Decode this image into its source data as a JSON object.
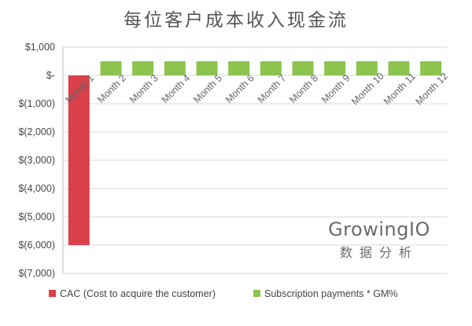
{
  "colors": {
    "cac": "#d9404a",
    "subscription": "#8cc44f",
    "grid": "#d9d9d9",
    "axis": "#bfbfbf"
  },
  "watermark": {
    "brand": "GrowingIO",
    "sub": "数据分析"
  },
  "chart_data": {
    "type": "bar",
    "title": "每位客户成本收入现金流",
    "xlabel": "",
    "ylabel": "",
    "categories": [
      "Month 1",
      "Month 2",
      "Month 3",
      "Month 4",
      "Month 5",
      "Month 6",
      "Month 7",
      "Month 8",
      "Month 9",
      "Month 10",
      "Month 11",
      "Month 12"
    ],
    "ylim": [
      -7000,
      1000
    ],
    "yticks": [
      1000,
      0,
      -1000,
      -2000,
      -3000,
      -4000,
      -5000,
      -6000,
      -7000
    ],
    "ytick_labels": [
      "$1,000",
      "$-",
      "$(1,000)",
      "$(2,000)",
      "$(3,000)",
      "$(4,000)",
      "$(5,000)",
      "$(6,000)",
      "$(7,000)"
    ],
    "grid": true,
    "legend_position": "bottom",
    "series": [
      {
        "name": "CAC (Cost to acquire the customer)",
        "color": "#d9404a",
        "values": [
          -6000,
          0,
          0,
          0,
          0,
          0,
          0,
          0,
          0,
          0,
          0,
          0
        ]
      },
      {
        "name": "Subscription payments * GM%",
        "color": "#8cc44f",
        "values": [
          0,
          500,
          500,
          500,
          500,
          500,
          500,
          500,
          500,
          500,
          500,
          500
        ]
      }
    ]
  }
}
